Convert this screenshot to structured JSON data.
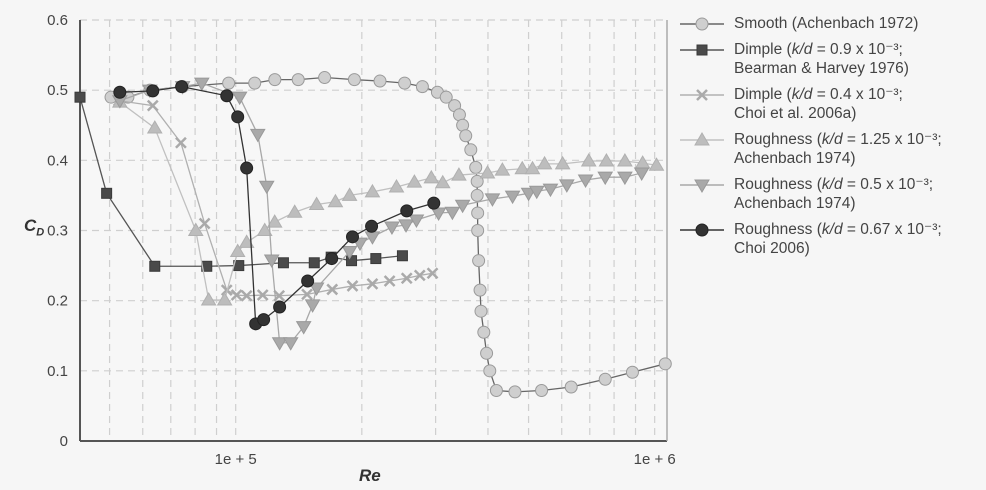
{
  "chart_data": {
    "type": "line",
    "xscale": "log",
    "xlabel": "Re",
    "ylabel_main": "C",
    "ylabel_sub": "D",
    "xlim": [
      42500,
      1070000
    ],
    "ylim": [
      0,
      0.6
    ],
    "yticks": [
      {
        "value": 0,
        "label": "0"
      },
      {
        "value": 0.1,
        "label": "0.1"
      },
      {
        "value": 0.2,
        "label": "0.2"
      },
      {
        "value": 0.3,
        "label": "0.3"
      },
      {
        "value": 0.4,
        "label": "0.4"
      },
      {
        "value": 0.5,
        "label": "0.5"
      },
      {
        "value": 0.6,
        "label": "0.6"
      }
    ],
    "xticks": [
      {
        "value": 100000,
        "label": "1e + 5"
      },
      {
        "value": 1000000,
        "label": "1e + 6"
      }
    ],
    "grid": true,
    "legend_position": "right",
    "series": [
      {
        "name_pre": "Smooth (Achenbach 1972)",
        "name_italic": "",
        "name_post": "",
        "name_line2": "",
        "marker": "circle",
        "fill": "#cfcfcf",
        "stroke": "#9a9a9a",
        "line": "#666666",
        "x": [
          50400,
          55300,
          62400,
          74700,
          96200,
          111000,
          124000,
          141000,
          163000,
          192000,
          221000,
          253000,
          279000,
          303000,
          318000,
          333000,
          342000,
          348000,
          354000,
          364000,
          374000,
          377000,
          377000,
          378000,
          378000,
          380000,
          383000,
          385000,
          391000,
          397000,
          404000,
          419000,
          464000,
          537000,
          632000,
          762000,
          885000,
          1060000
        ],
        "y": [
          0.49,
          0.49,
          0.5,
          0.505,
          0.51,
          0.51,
          0.515,
          0.515,
          0.518,
          0.515,
          0.513,
          0.51,
          0.505,
          0.497,
          0.49,
          0.478,
          0.465,
          0.45,
          0.435,
          0.415,
          0.39,
          0.37,
          0.35,
          0.325,
          0.3,
          0.257,
          0.215,
          0.185,
          0.155,
          0.125,
          0.1,
          0.072,
          0.07,
          0.072,
          0.077,
          0.088,
          0.098,
          0.11
        ]
      },
      {
        "name_pre": "Dimple (",
        "name_italic": "k/d",
        "name_post": " = 0.9 x 10⁻³;",
        "name_line2": "Bearman & Harvey 1976)",
        "marker": "square",
        "fill": "#4a4a4a",
        "stroke": "#3a3a3a",
        "line": "#555555",
        "x": [
          42500,
          49200,
          64100,
          85300,
          101700,
          130000,
          154000,
          169000,
          189000,
          216000,
          250000
        ],
        "y": [
          0.49,
          0.353,
          0.249,
          0.249,
          0.25,
          0.254,
          0.254,
          0.262,
          0.257,
          0.26,
          0.264
        ]
      },
      {
        "name_pre": "Dimple (",
        "name_italic": "k/d",
        "name_post": " = 0.4 x 10⁻³;",
        "name_line2": "Choi et al. 2006a)",
        "marker": "x",
        "fill": "#aaaaaa",
        "stroke": "#a0a0a0",
        "line": "#b0b0b0",
        "x": [
          52600,
          63400,
          74000,
          84300,
          95200,
          100500,
          106200,
          116000,
          127000,
          148000,
          170000,
          190000,
          212000,
          233000,
          256000,
          275000,
          295000
        ],
        "y": [
          0.485,
          0.478,
          0.425,
          0.31,
          0.215,
          0.208,
          0.207,
          0.208,
          0.207,
          0.209,
          0.216,
          0.221,
          0.224,
          0.228,
          0.232,
          0.236,
          0.239
        ]
      },
      {
        "name_pre": "Roughness (",
        "name_italic": "k/d",
        "name_post": " = 1.25 x 10⁻³;",
        "name_line2": "Achenbach 1974)",
        "marker": "triangle-up",
        "fill": "#bdbdbd",
        "stroke": "#b0b0b0",
        "line": "#c0c0c0",
        "x": [
          52900,
          64100,
          80300,
          86200,
          94100,
          101100,
          106200,
          117300,
          123900,
          138300,
          156000,
          173000,
          187000,
          212000,
          242000,
          267000,
          293000,
          312000,
          341000,
          399000,
          433000,
          483000,
          511000,
          546000,
          603000,
          696000,
          767000,
          849000,
          936000,
          1010000
        ],
        "y": [
          0.483,
          0.446,
          0.3,
          0.201,
          0.201,
          0.27,
          0.283,
          0.3,
          0.312,
          0.326,
          0.337,
          0.341,
          0.35,
          0.355,
          0.362,
          0.369,
          0.375,
          0.368,
          0.379,
          0.382,
          0.386,
          0.388,
          0.388,
          0.395,
          0.395,
          0.399,
          0.399,
          0.399,
          0.396,
          0.393
        ]
      },
      {
        "name_pre": "Roughness (",
        "name_italic": "k/d",
        "name_post": " = 0.5 x 10⁻³;",
        "name_line2": "Achenbach 1974)",
        "marker": "triangle-down",
        "fill": "#a9a9a9",
        "stroke": "#999999",
        "line": "#a8a8a8",
        "x": [
          52900,
          62400,
          74700,
          83000,
          102200,
          112900,
          118600,
          121900,
          127300,
          135300,
          145300,
          152600,
          156000,
          187000,
          198000,
          212000,
          236000,
          255000,
          270000,
          305000,
          329000,
          348000,
          410000,
          458000,
          500000,
          523000,
          564000,
          617000,
          684000,
          762000,
          849000,
          931000
        ],
        "y": [
          0.485,
          0.5,
          0.505,
          0.51,
          0.49,
          0.437,
          0.363,
          0.258,
          0.14,
          0.14,
          0.163,
          0.194,
          0.218,
          0.27,
          0.282,
          0.291,
          0.305,
          0.308,
          0.315,
          0.325,
          0.326,
          0.336,
          0.345,
          0.349,
          0.353,
          0.356,
          0.359,
          0.365,
          0.372,
          0.376,
          0.376,
          0.382
        ]
      },
      {
        "name_pre": "Roughness (",
        "name_italic": "k/d",
        "name_post": " = 0.67 x 10⁻³;",
        "name_line2": "Choi 2006)",
        "marker": "circle",
        "fill": "#333333",
        "stroke": "#222222",
        "line": "#333333",
        "x": [
          52900,
          63400,
          74300,
          95200,
          101100,
          106200,
          111600,
          116600,
          127300,
          148500,
          169500,
          190000,
          211000,
          256000,
          297000
        ],
        "y": [
          0.497,
          0.499,
          0.505,
          0.492,
          0.462,
          0.389,
          0.167,
          0.173,
          0.191,
          0.228,
          0.26,
          0.291,
          0.306,
          0.328,
          0.339
        ]
      }
    ]
  }
}
